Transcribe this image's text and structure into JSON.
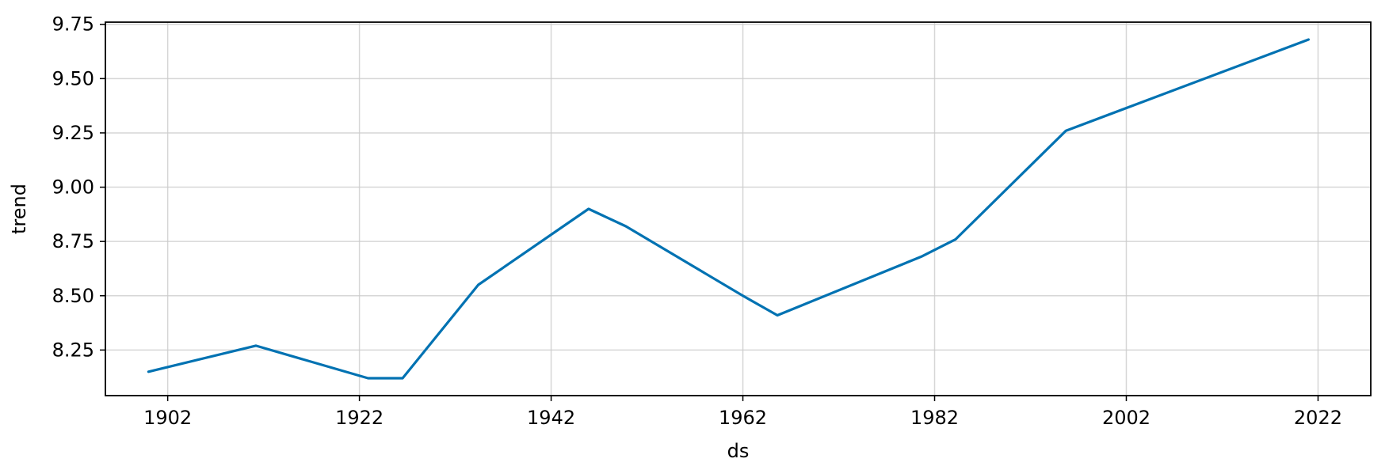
{
  "chart_data": {
    "type": "line",
    "title": "",
    "xlabel": "ds",
    "ylabel": "trend",
    "x_ticks": [
      "1902",
      "1922",
      "1942",
      "1962",
      "1982",
      "2002",
      "2022"
    ],
    "y_ticks": [
      "8.25",
      "8.50",
      "8.75",
      "9.00",
      "9.25",
      "9.50",
      "9.75"
    ],
    "xlim": [
      1895.5,
      2027.5
    ],
    "ylim": [
      8.04,
      9.76
    ],
    "grid": true,
    "legend": "none",
    "series": [
      {
        "color": "#0072B2",
        "x": [
          1900,
          1911.2,
          1922.9,
          1926.5,
          1934.4,
          1945.9,
          1949.8,
          1962,
          1965.6,
          1980.6,
          1984.2,
          1995.7,
          2021
        ],
        "y": [
          8.15,
          8.27,
          8.12,
          8.12,
          8.55,
          8.9,
          8.82,
          8.5,
          8.41,
          8.68,
          8.76,
          9.26,
          9.68
        ]
      }
    ]
  }
}
